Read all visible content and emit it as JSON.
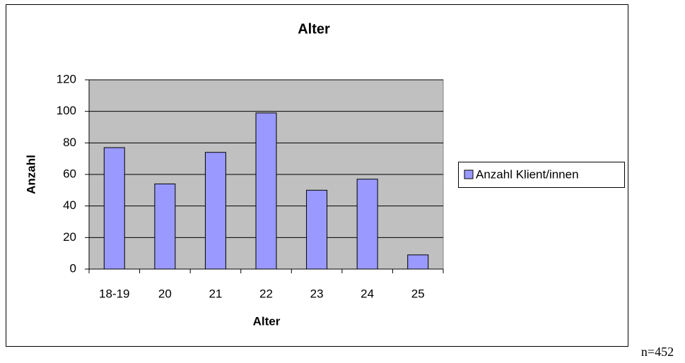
{
  "chart_data": {
    "type": "bar",
    "title": "Alter",
    "x_label": "Alter",
    "y_label": "Anzahl",
    "categories": [
      "18-19",
      "20",
      "21",
      "22",
      "23",
      "24",
      "25"
    ],
    "series": [
      {
        "name": "Anzahl Klient/innen",
        "color": "#9999ff",
        "values": [
          77,
          54,
          74,
          99,
          50,
          57,
          9
        ]
      }
    ],
    "ylim": [
      0,
      120
    ],
    "yticks": [
      0,
      20,
      40,
      60,
      80,
      100,
      120
    ],
    "grid": true,
    "legend": "right",
    "annotation": "n=452"
  }
}
